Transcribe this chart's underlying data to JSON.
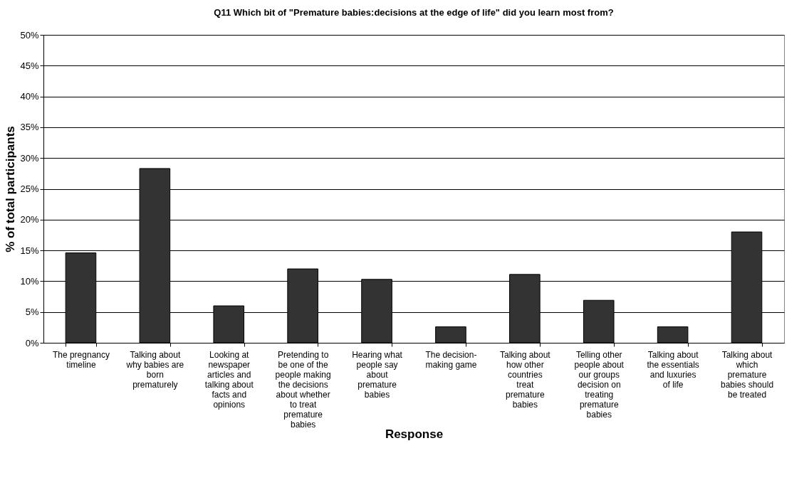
{
  "chart_data": {
    "type": "bar",
    "title": "Q11 Which bit of \"Premature babies:decisions at the edge of life\" did you learn most from?",
    "xlabel": "Response",
    "ylabel": "% of total participants",
    "categories": [
      "The pregnancy timeline",
      "Talking about why babies are born prematurely",
      "Looking at newspaper articles and talking about facts and opinions",
      "Pretending to be one of the people making the decisions about whether to treat premature babies",
      "Hearing what people say about premature babies",
      "The decision-making game",
      "Talking about how other countries treat premature babies",
      "Telling other people about our groups decision on treating premature babies",
      "Talking about the essentials and luxuries of life",
      "Talking about which premature babies should be treated"
    ],
    "values": [
      14.6,
      28.3,
      6.0,
      12.0,
      10.3,
      2.6,
      11.1,
      6.9,
      2.6,
      18.0
    ],
    "color": "#333333",
    "ylim": [
      0,
      50
    ],
    "yticks": [
      {
        "value": 0,
        "label": "0%"
      },
      {
        "value": 5,
        "label": "5%"
      },
      {
        "value": 10,
        "label": "10%"
      },
      {
        "value": 15,
        "label": "15%"
      },
      {
        "value": 20,
        "label": "20%"
      },
      {
        "value": 25,
        "label": "25%"
      },
      {
        "value": 30,
        "label": "30%"
      },
      {
        "value": 35,
        "label": "35%"
      },
      {
        "value": 40,
        "label": "40%"
      },
      {
        "value": 45,
        "label": "45%"
      },
      {
        "value": 50,
        "label": "50%"
      }
    ],
    "grid": "y"
  }
}
